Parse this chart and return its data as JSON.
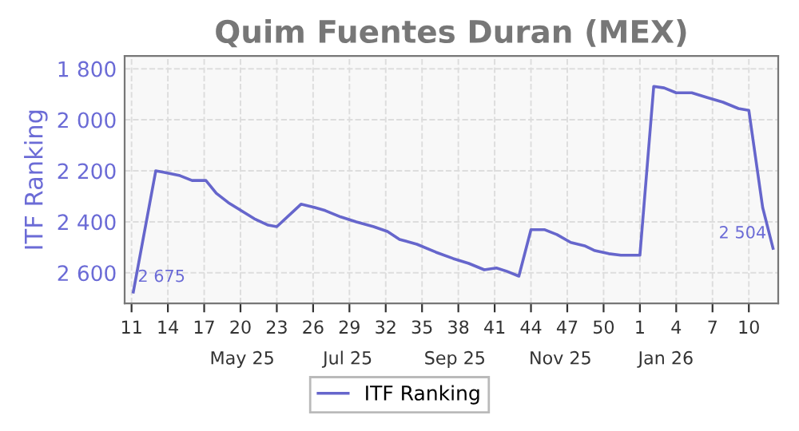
{
  "chart_data": {
    "type": "line",
    "title": "Quim Fuentes Duran (MEX)",
    "ylabel": "ITF Ranking",
    "x": [
      "2025-03-11",
      "2025-03-24",
      "2025-03-29",
      "2025-04-07",
      "2025-04-14",
      "2025-04-22",
      "2025-04-28",
      "2025-05-05",
      "2025-05-14",
      "2025-05-20",
      "2025-05-28",
      "2025-06-02",
      "2025-06-16",
      "2025-06-24",
      "2025-06-30",
      "2025-07-09",
      "2025-07-18",
      "2025-07-28",
      "2025-08-05",
      "2025-08-12",
      "2025-08-22",
      "2025-09-02",
      "2025-09-12",
      "2025-09-21",
      "2025-09-30",
      "2025-10-07",
      "2025-10-13",
      "2025-10-20",
      "2025-10-27",
      "2025-11-04",
      "2025-11-11",
      "2025-11-19",
      "2025-11-27",
      "2025-12-03",
      "2025-12-11",
      "2025-12-18",
      "2025-12-29",
      "2026-01-06",
      "2026-01-12",
      "2026-01-19",
      "2026-01-28",
      "2026-02-06",
      "2026-02-15",
      "2026-02-24",
      "2026-03-02",
      "2026-03-10",
      "2026-03-16"
    ],
    "series": [
      {
        "name": "ITF Ranking",
        "color": "#6666cc",
        "values": [
          2675,
          2200,
          2206,
          2219,
          2238,
          2238,
          2288,
          2325,
          2363,
          2388,
          2413,
          2419,
          2331,
          2344,
          2356,
          2381,
          2400,
          2419,
          2438,
          2469,
          2488,
          2519,
          2544,
          2563,
          2588,
          2581,
          2594,
          2613,
          2431,
          2431,
          2450,
          2481,
          2494,
          2513,
          2525,
          2531,
          2531,
          1869,
          1875,
          1894,
          1894,
          1913,
          1931,
          1956,
          1963,
          2344,
          2504
        ]
      }
    ],
    "annotations": [
      {
        "text": "2 675",
        "x": "2025-03-11",
        "y": 2675
      },
      {
        "text": "2 504",
        "x": "2026-03-16",
        "y": 2504
      }
    ],
    "xlim": [
      "2025-03-06",
      "2026-03-19"
    ],
    "ylim": [
      2720,
      1750
    ],
    "xticks": [
      {
        "value": "2025-03-10",
        "label": "11"
      },
      {
        "value": "2025-03-31",
        "label": "14"
      },
      {
        "value": "2025-04-21",
        "label": "17"
      },
      {
        "value": "2025-05-12",
        "label": "20"
      },
      {
        "value": "2025-06-02",
        "label": "23"
      },
      {
        "value": "2025-06-23",
        "label": "26"
      },
      {
        "value": "2025-07-14",
        "label": "29"
      },
      {
        "value": "2025-08-04",
        "label": "32"
      },
      {
        "value": "2025-08-25",
        "label": "35"
      },
      {
        "value": "2025-09-15",
        "label": "38"
      },
      {
        "value": "2025-10-06",
        "label": "41"
      },
      {
        "value": "2025-10-27",
        "label": "44"
      },
      {
        "value": "2025-11-17",
        "label": "47"
      },
      {
        "value": "2025-12-08",
        "label": "50"
      },
      {
        "value": "2025-12-29",
        "label": "1"
      },
      {
        "value": "2026-01-19",
        "label": "4"
      },
      {
        "value": "2026-02-09",
        "label": "7"
      },
      {
        "value": "2026-03-02",
        "label": "10"
      }
    ],
    "x2lim": [
      "2025-03-06",
      "2026-03-19"
    ],
    "x2ticks": [
      {
        "value": "2025-05-13",
        "label": "May 25"
      },
      {
        "value": "2025-07-13",
        "label": "Jul 25"
      },
      {
        "value": "2025-09-13",
        "label": "Sep 25"
      },
      {
        "value": "2025-11-13",
        "label": "Nov 25"
      },
      {
        "value": "2026-01-13",
        "label": "Jan 26"
      }
    ],
    "yticks": [
      {
        "value": 1800,
        "label": "1 800"
      },
      {
        "value": 2000,
        "label": "2 000"
      },
      {
        "value": 2200,
        "label": "2 200"
      },
      {
        "value": 2400,
        "label": "2 400"
      },
      {
        "value": 2600,
        "label": "2 600"
      }
    ],
    "grid": true,
    "legend": "bottom",
    "line_style": "solid",
    "marker": "none"
  }
}
